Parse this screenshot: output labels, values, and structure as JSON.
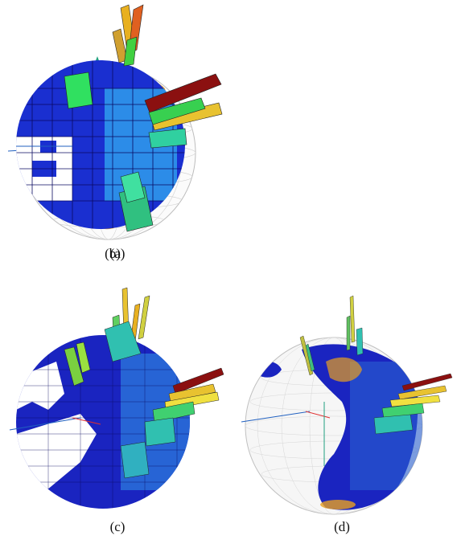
{
  "captions": {
    "a": "(a)",
    "b": "(b)",
    "c": "(c)",
    "d": "(d)"
  },
  "colors": {
    "sphere_grid": "#c8c8c8",
    "data_points": "#e8a020",
    "bin_low": "#1a1fb0",
    "bin_mid": "#2c8ce8",
    "bin_high_green": "#39e060",
    "bin_high_yellow": "#e8c230",
    "bin_max": "#8b1010",
    "axis_x": "#e03030",
    "axis_y": "#20a080",
    "axis_z": "#2060c0"
  },
  "panels": [
    {
      "id": "a",
      "mode": "points",
      "bins": 0
    },
    {
      "id": "b",
      "mode": "coarse-bins",
      "bins": "coarse"
    },
    {
      "id": "c",
      "mode": "medium-bins",
      "bins": "medium"
    },
    {
      "id": "d",
      "mode": "fine-bins",
      "bins": "fine"
    }
  ]
}
